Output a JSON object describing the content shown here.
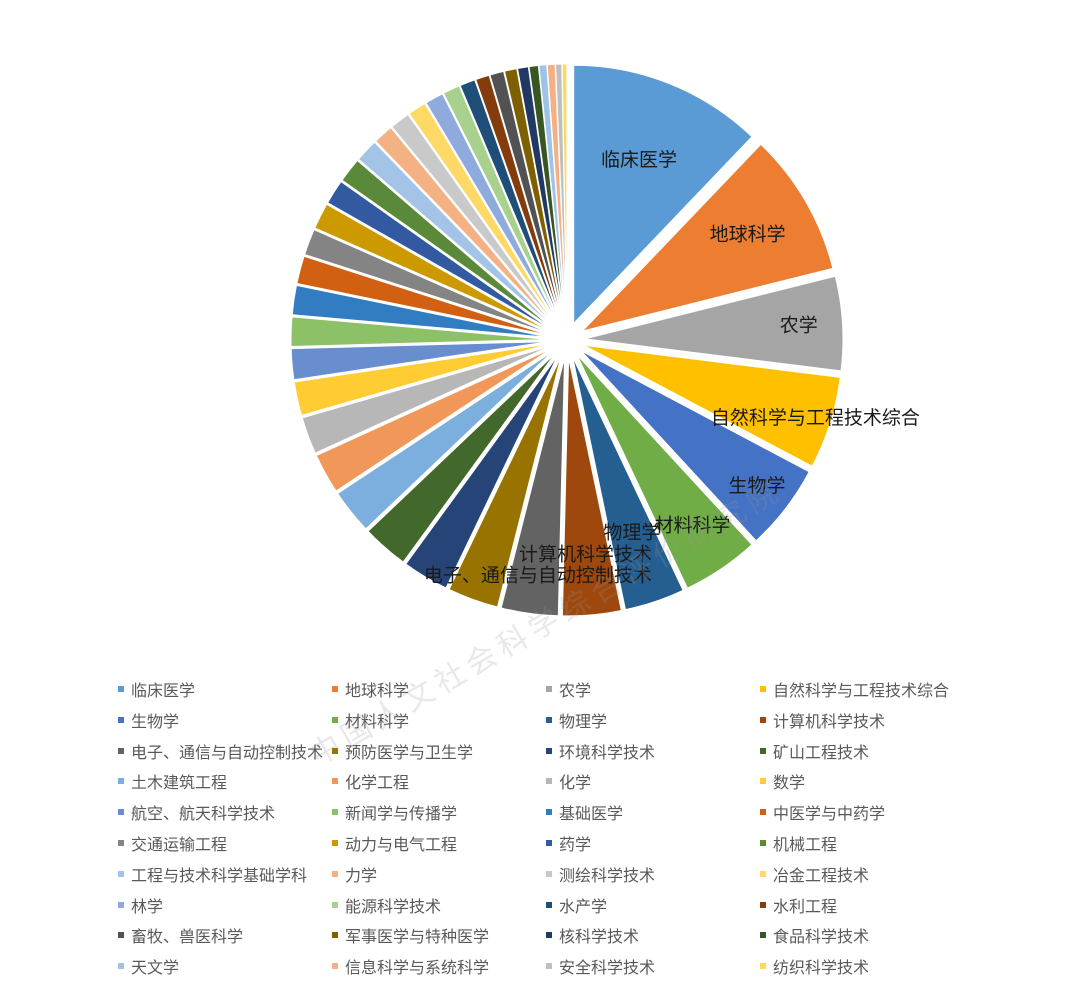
{
  "chart_data": {
    "type": "pie",
    "exploded": true,
    "legend_position": "bottom",
    "categories": [
      "临床医学",
      "地球科学",
      "农学",
      "自然科学与工程技术综合",
      "生物学",
      "材料科学",
      "物理学",
      "计算机科学技术",
      "电子、通信与自动控制技术",
      "预防医学与卫生学",
      "环境科学技术",
      "矿山工程技术",
      "土木建筑工程",
      "化学工程",
      "化学",
      "数学",
      "航空、航天科学技术",
      "新闻学与传播学",
      "基础医学",
      "中医学与中药学",
      "交通运输工程",
      "动力与电气工程",
      "药学",
      "机械工程",
      "工程与技术科学基础学科",
      "力学",
      "测绘科学技术",
      "冶金工程技术",
      "林学",
      "能源科学技术",
      "水产学",
      "水利工程",
      "畜牧、兽医科学",
      "军事医学与特种医学",
      "核科学技术",
      "食品科学技术",
      "天文学",
      "信息科学与系统科学",
      "安全科学技术",
      "纺织科学技术"
    ],
    "values": [
      12.6,
      9.3,
      6.1,
      6.0,
      5.6,
      5.0,
      3.9,
      3.8,
      3.7,
      3.3,
      3.0,
      3.0,
      2.9,
      2.6,
      2.4,
      2.2,
      2.0,
      1.9,
      1.9,
      1.8,
      1.7,
      1.7,
      1.6,
      1.6,
      1.5,
      1.3,
      1.3,
      1.2,
      1.2,
      1.1,
      1.0,
      0.9,
      0.9,
      0.8,
      0.7,
      0.6,
      0.5,
      0.5,
      0.4,
      0.3
    ],
    "colors": [
      "#5B9BD5",
      "#ED7D31",
      "#A5A5A5",
      "#FFC000",
      "#4472C4",
      "#70AD47",
      "#255E91",
      "#9E480E",
      "#636363",
      "#997300",
      "#264478",
      "#43682B",
      "#7CAFDD",
      "#F1975A",
      "#B7B7B7",
      "#FFCD33",
      "#698ED0",
      "#8CC168",
      "#327DC2",
      "#D26012",
      "#848484",
      "#CC9A00",
      "#335AA1",
      "#5A8A39",
      "#A3C4E6",
      "#F4B183",
      "#C9C9C9",
      "#FFD966",
      "#8FAADC",
      "#A9D18E",
      "#1F4E79",
      "#843C0C",
      "#525252",
      "#7F6000",
      "#203864",
      "#375623",
      "#9DC3E6",
      "#F4B084",
      "#BFBFBF",
      "#FFD85C"
    ],
    "data_labels_shown": [
      "临床医学",
      "地球科学",
      "农学",
      "自然科学与工程技术综合",
      "生物学",
      "材料科学",
      "物理学",
      "计算机科学技术",
      "电子、通信与自动控制技术"
    ]
  },
  "watermark": "中国人文社会科学综合评价研究院",
  "icons": {
    "legend_marker": "square-bullet"
  }
}
